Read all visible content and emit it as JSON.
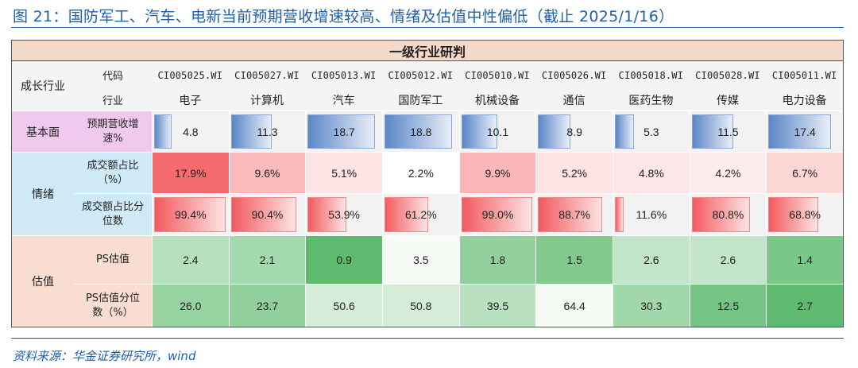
{
  "title": "图 21：国防军工、汽车、电新当前预期营收增速较高、情绪及估值中性偏低（截止 2025/1/16）",
  "source": "资料来源：华金证券研究所，wind",
  "table": {
    "header_top": "一级行业研判",
    "col0_header": "成长行业",
    "code_label": "代码",
    "industry_label": "行业",
    "codes": [
      "CI005025.WI",
      "CI005027.WI",
      "CI005013.WI",
      "CI005012.WI",
      "CI005010.WI",
      "CI005026.WI",
      "CI005018.WI",
      "CI005028.WI",
      "CI005011.WI"
    ],
    "industries": [
      "电子",
      "计算机",
      "汽车",
      "国防军工",
      "机械设备",
      "通信",
      "医药生物",
      "传媒",
      "电力设备"
    ],
    "groups": [
      {
        "name": "基本面",
        "color": "#f2c9ee",
        "rows": [
          {
            "label": "预期营收增速%",
            "kind": "bar-blue",
            "values": [
              "4.8",
              "11.3",
              "18.7",
              "18.8",
              "10.1",
              "8.9",
              "5.3",
              "11.5",
              "17.4"
            ],
            "nums": [
              4.8,
              11.3,
              18.7,
              18.8,
              10.1,
              8.9,
              5.3,
              11.5,
              17.4
            ]
          }
        ]
      },
      {
        "name": "情绪",
        "color": "#cfe9f7",
        "rows": [
          {
            "label": "成交额占比（%）",
            "kind": "heat-red",
            "values": [
              "17.9%",
              "9.6%",
              "5.1%",
              "2.2%",
              "9.9%",
              "5.2%",
              "4.8%",
              "4.2%",
              "6.7%"
            ],
            "nums": [
              17.9,
              9.6,
              5.1,
              2.2,
              9.9,
              5.2,
              4.8,
              4.2,
              6.7
            ]
          },
          {
            "label": "成交额占比分位数",
            "kind": "bar-red",
            "values": [
              "99.4%",
              "90.4%",
              "53.9%",
              "61.2%",
              "99.0%",
              "88.7%",
              "11.6%",
              "80.8%",
              "68.8%"
            ],
            "nums": [
              99.4,
              90.4,
              53.9,
              61.2,
              99.0,
              88.7,
              11.6,
              80.8,
              68.8
            ]
          }
        ]
      },
      {
        "name": "估值",
        "color": "#f8ddd0",
        "rows": [
          {
            "label": "PS估值",
            "kind": "heat-green",
            "values": [
              "2.4",
              "2.1",
              "0.9",
              "3.5",
              "1.8",
              "1.5",
              "2.6",
              "2.6",
              "1.4"
            ],
            "nums": [
              2.4,
              2.1,
              0.9,
              3.5,
              1.8,
              1.5,
              2.6,
              2.6,
              1.4
            ]
          },
          {
            "label": "PS估值分位数（%）",
            "kind": "heat-green",
            "values": [
              "26.0",
              "23.7",
              "50.6",
              "50.8",
              "39.5",
              "64.4",
              "30.3",
              "12.5",
              "2.7"
            ],
            "nums": [
              26.0,
              23.7,
              50.6,
              50.8,
              39.5,
              64.4,
              30.3,
              12.5,
              2.7
            ]
          }
        ]
      }
    ]
  }
}
